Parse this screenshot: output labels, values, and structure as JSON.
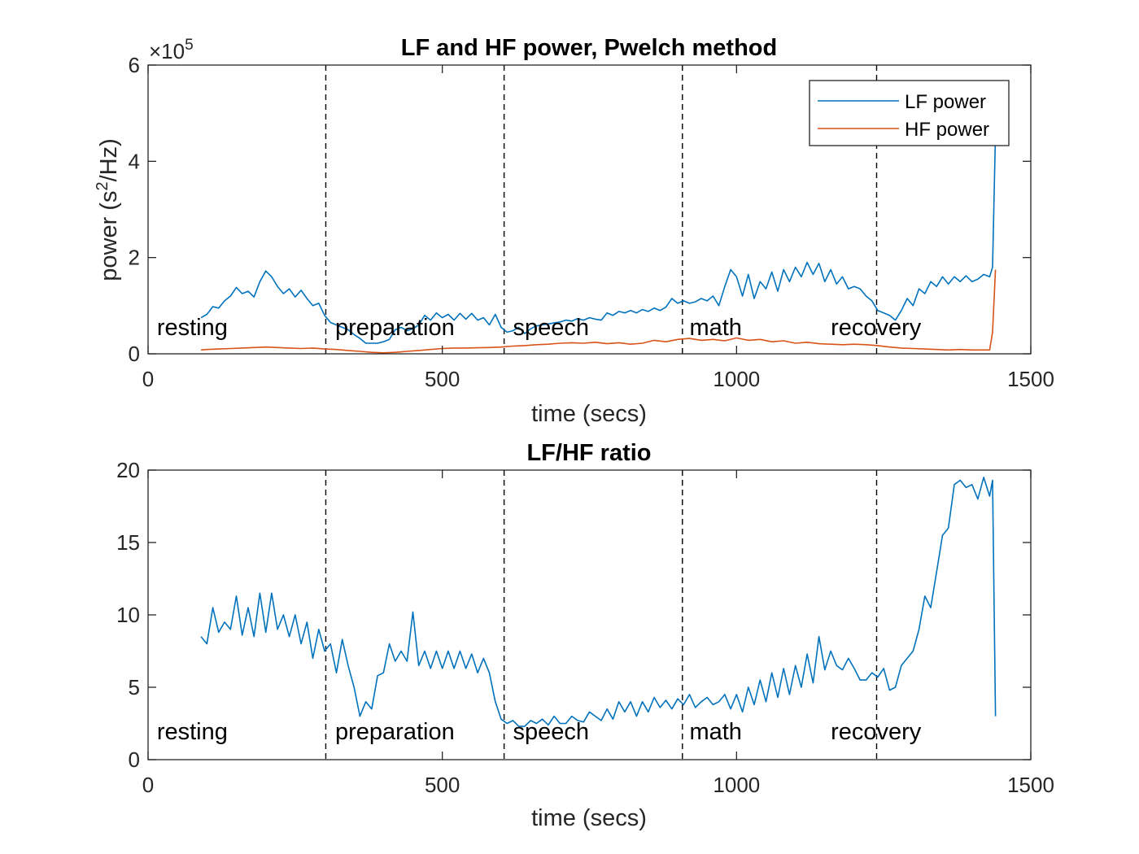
{
  "chart_data": [
    {
      "type": "line",
      "title": "LF and HF power, Pwelch method",
      "xlabel": "time (secs)",
      "ylabel_prefix": "power (s",
      "ylabel_sup": "2",
      "ylabel_suffix": "/Hz)",
      "exponent_base": "×10",
      "exponent_power": "5",
      "xlim": [
        0,
        1500
      ],
      "ylim": [
        0,
        600000
      ],
      "xticks": [
        0,
        500,
        1000,
        1500
      ],
      "xtick_labels": [
        "0",
        "500",
        "1000",
        "1500"
      ],
      "yticks": [
        0,
        200000,
        400000,
        600000
      ],
      "ytick_labels": [
        "0",
        "2",
        "4",
        "6"
      ],
      "grid": false,
      "legend_position": "top-right",
      "vlines": [
        302,
        605,
        908,
        1238
      ],
      "phases": [
        {
          "label": "resting",
          "x": 15
        },
        {
          "label": "preparation",
          "x": 318
        },
        {
          "label": "speech",
          "x": 620
        },
        {
          "label": "math",
          "x": 920
        },
        {
          "label": "recovery",
          "x": 1160
        }
      ],
      "series": [
        {
          "name": "LF power",
          "color": "#0072BD",
          "x": [
            90,
            100,
            110,
            120,
            130,
            140,
            150,
            160,
            170,
            180,
            190,
            200,
            210,
            220,
            230,
            240,
            250,
            260,
            270,
            280,
            290,
            300,
            310,
            320,
            330,
            340,
            350,
            360,
            370,
            380,
            390,
            400,
            410,
            420,
            430,
            440,
            450,
            460,
            470,
            480,
            490,
            500,
            510,
            520,
            530,
            540,
            550,
            560,
            570,
            580,
            590,
            600,
            610,
            620,
            630,
            640,
            650,
            660,
            670,
            680,
            690,
            700,
            710,
            720,
            730,
            740,
            750,
            760,
            770,
            780,
            790,
            800,
            810,
            820,
            830,
            840,
            850,
            860,
            870,
            880,
            890,
            900,
            910,
            920,
            930,
            940,
            950,
            960,
            970,
            980,
            990,
            1000,
            1010,
            1020,
            1030,
            1040,
            1050,
            1060,
            1070,
            1080,
            1090,
            1100,
            1110,
            1120,
            1130,
            1140,
            1150,
            1160,
            1170,
            1180,
            1190,
            1200,
            1210,
            1220,
            1230,
            1240,
            1250,
            1260,
            1270,
            1280,
            1290,
            1300,
            1310,
            1320,
            1330,
            1340,
            1350,
            1360,
            1370,
            1380,
            1390,
            1400,
            1410,
            1420,
            1430,
            1435,
            1440
          ],
          "values": [
            75000,
            82000,
            98000,
            95000,
            110000,
            120000,
            138000,
            125000,
            130000,
            118000,
            150000,
            172000,
            160000,
            140000,
            125000,
            135000,
            118000,
            132000,
            115000,
            100000,
            105000,
            80000,
            65000,
            60000,
            55000,
            50000,
            40000,
            32000,
            22000,
            22000,
            22000,
            25000,
            30000,
            50000,
            55000,
            48000,
            52000,
            60000,
            80000,
            70000,
            85000,
            75000,
            82000,
            70000,
            84000,
            72000,
            84000,
            70000,
            75000,
            60000,
            82000,
            55000,
            45000,
            48000,
            55000,
            42000,
            52000,
            58000,
            60000,
            62000,
            64000,
            66000,
            70000,
            68000,
            73000,
            70000,
            75000,
            72000,
            70000,
            85000,
            80000,
            88000,
            85000,
            90000,
            85000,
            92000,
            88000,
            95000,
            90000,
            97000,
            115000,
            105000,
            110000,
            105000,
            108000,
            115000,
            110000,
            120000,
            100000,
            140000,
            175000,
            160000,
            120000,
            165000,
            115000,
            150000,
            135000,
            170000,
            130000,
            175000,
            150000,
            180000,
            160000,
            190000,
            165000,
            188000,
            150000,
            175000,
            145000,
            160000,
            135000,
            140000,
            135000,
            120000,
            110000,
            90000,
            85000,
            80000,
            70000,
            90000,
            115000,
            100000,
            135000,
            125000,
            150000,
            140000,
            160000,
            145000,
            160000,
            150000,
            162000,
            150000,
            155000,
            165000,
            160000,
            180000,
            460000
          ]
        },
        {
          "name": "HF power",
          "color": "#D95319",
          "x": [
            90,
            100,
            120,
            140,
            160,
            180,
            200,
            220,
            240,
            260,
            280,
            300,
            320,
            340,
            360,
            380,
            400,
            420,
            440,
            460,
            480,
            500,
            520,
            540,
            560,
            580,
            600,
            620,
            640,
            660,
            680,
            700,
            720,
            740,
            760,
            780,
            800,
            820,
            840,
            860,
            880,
            900,
            920,
            940,
            960,
            980,
            1000,
            1020,
            1040,
            1060,
            1080,
            1100,
            1120,
            1140,
            1160,
            1180,
            1200,
            1220,
            1240,
            1260,
            1280,
            1300,
            1320,
            1340,
            1360,
            1380,
            1400,
            1420,
            1430,
            1435,
            1440
          ],
          "values": [
            8000,
            9000,
            10000,
            11000,
            12000,
            13000,
            14000,
            13000,
            12000,
            11000,
            12000,
            10000,
            9000,
            7000,
            5000,
            3000,
            2000,
            3000,
            5000,
            7000,
            9000,
            11000,
            12000,
            12000,
            12500,
            13000,
            14000,
            16000,
            17000,
            19000,
            20000,
            22000,
            23000,
            22000,
            24000,
            21000,
            23000,
            20000,
            22000,
            28000,
            25000,
            30000,
            32000,
            28000,
            30000,
            27000,
            33000,
            28000,
            30000,
            25000,
            27000,
            22000,
            24000,
            21000,
            20000,
            19000,
            20000,
            19000,
            17000,
            14000,
            12000,
            11000,
            10000,
            9000,
            8000,
            9000,
            8000,
            8000,
            8000,
            45000,
            175000
          ]
        }
      ]
    },
    {
      "type": "line",
      "title": "LF/HF ratio",
      "xlabel": "time (secs)",
      "ylabel": "",
      "xlim": [
        0,
        1500
      ],
      "ylim": [
        0,
        20
      ],
      "xticks": [
        0,
        500,
        1000,
        1500
      ],
      "xtick_labels": [
        "0",
        "500",
        "1000",
        "1500"
      ],
      "yticks": [
        0,
        5,
        10,
        15,
        20
      ],
      "ytick_labels": [
        "0",
        "5",
        "10",
        "15",
        "20"
      ],
      "grid": false,
      "vlines": [
        302,
        605,
        908,
        1238
      ],
      "phases": [
        {
          "label": "resting",
          "x": 15
        },
        {
          "label": "preparation",
          "x": 318
        },
        {
          "label": "speech",
          "x": 620
        },
        {
          "label": "math",
          "x": 920
        },
        {
          "label": "recovery",
          "x": 1160
        }
      ],
      "series": [
        {
          "name": "",
          "color": "#0072BD",
          "x": [
            90,
            100,
            110,
            120,
            130,
            140,
            150,
            160,
            170,
            180,
            190,
            200,
            210,
            220,
            230,
            240,
            250,
            260,
            270,
            280,
            290,
            300,
            310,
            320,
            330,
            340,
            350,
            360,
            370,
            380,
            390,
            400,
            410,
            420,
            430,
            440,
            450,
            460,
            470,
            480,
            490,
            500,
            510,
            520,
            530,
            540,
            550,
            560,
            570,
            580,
            590,
            600,
            610,
            620,
            630,
            640,
            650,
            660,
            670,
            680,
            690,
            700,
            710,
            720,
            730,
            740,
            750,
            760,
            770,
            780,
            790,
            800,
            810,
            820,
            830,
            840,
            850,
            860,
            870,
            880,
            890,
            900,
            910,
            920,
            930,
            940,
            950,
            960,
            970,
            980,
            990,
            1000,
            1010,
            1020,
            1030,
            1040,
            1050,
            1060,
            1070,
            1080,
            1090,
            1100,
            1110,
            1120,
            1130,
            1140,
            1150,
            1160,
            1170,
            1180,
            1190,
            1200,
            1210,
            1220,
            1230,
            1240,
            1250,
            1260,
            1270,
            1280,
            1290,
            1300,
            1310,
            1320,
            1330,
            1340,
            1350,
            1360,
            1370,
            1380,
            1390,
            1400,
            1410,
            1420,
            1430,
            1435,
            1440
          ],
          "values": [
            8.5,
            8.0,
            10.5,
            8.8,
            9.5,
            9.0,
            11.3,
            8.6,
            10.5,
            8.5,
            11.5,
            8.8,
            11.5,
            9.0,
            10.0,
            8.5,
            10.0,
            8.0,
            9.5,
            7.0,
            9.0,
            7.5,
            8.0,
            6.0,
            8.3,
            6.5,
            5.0,
            3.0,
            4.0,
            3.5,
            5.8,
            6.0,
            8.0,
            6.8,
            7.5,
            6.8,
            10.2,
            6.5,
            7.5,
            6.3,
            7.5,
            6.3,
            7.5,
            6.3,
            7.5,
            6.3,
            7.3,
            6.0,
            7.0,
            6.0,
            4.0,
            2.8,
            2.5,
            2.7,
            2.3,
            2.3,
            2.7,
            2.5,
            2.8,
            2.4,
            3.0,
            2.5,
            2.5,
            3.0,
            2.7,
            2.6,
            3.3,
            3.0,
            2.7,
            3.5,
            2.8,
            4.0,
            3.3,
            4.0,
            3.0,
            4.0,
            3.3,
            4.3,
            3.6,
            4.1,
            3.5,
            4.2,
            3.8,
            4.5,
            3.6,
            4.0,
            4.3,
            3.8,
            4.0,
            4.5,
            3.5,
            4.5,
            3.3,
            5.0,
            3.8,
            5.5,
            4.0,
            6.0,
            4.3,
            6.3,
            4.5,
            6.5,
            5.0,
            7.3,
            5.3,
            8.5,
            6.2,
            7.5,
            6.5,
            6.2,
            7.0,
            6.3,
            5.5,
            5.5,
            6.0,
            5.7,
            6.3,
            4.8,
            5.0,
            6.5,
            7.0,
            7.5,
            9.0,
            11.3,
            10.5,
            13.0,
            15.5,
            16.0,
            19.0,
            19.3,
            18.8,
            19.0,
            18.0,
            19.5,
            18.2,
            19.3,
            3.0
          ]
        }
      ]
    }
  ]
}
